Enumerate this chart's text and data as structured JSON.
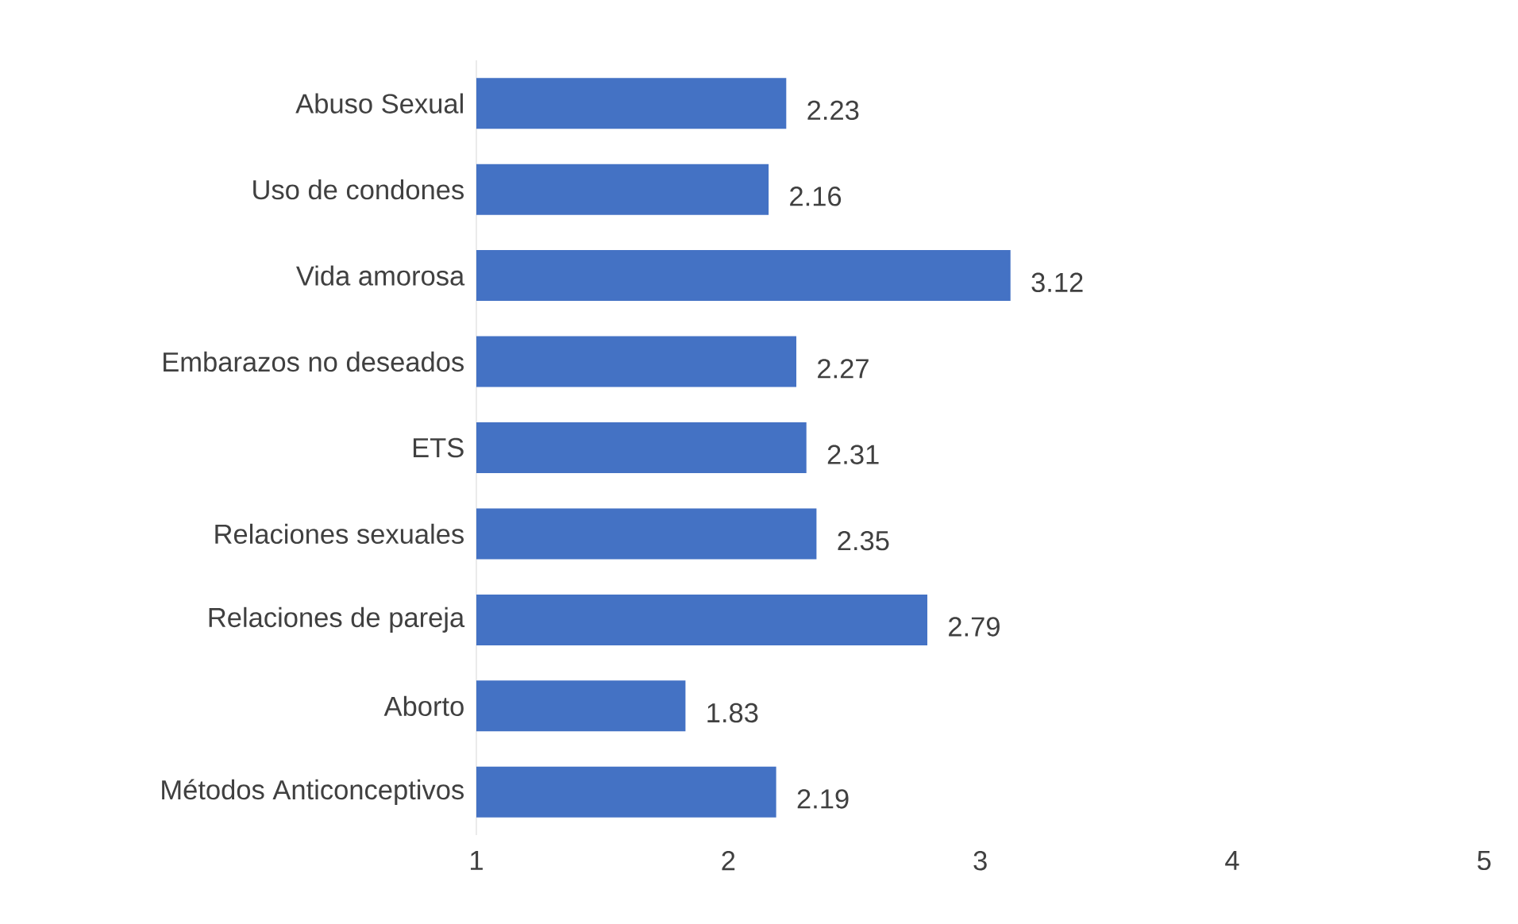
{
  "chart_data": {
    "type": "bar",
    "orientation": "horizontal",
    "categories": [
      "Abuso Sexual",
      "Uso de condones",
      "Vida amorosa",
      "Embarazos no deseados",
      "ETS",
      "Relaciones sexuales",
      "Relaciones de pareja",
      "Aborto",
      "Métodos Anticonceptivos"
    ],
    "values": [
      2.23,
      2.16,
      3.12,
      2.27,
      2.31,
      2.35,
      2.79,
      1.83,
      2.19
    ],
    "color": "#4472c4",
    "xlim": [
      1,
      5
    ],
    "xticks": [
      1,
      2,
      3,
      4,
      5
    ],
    "data_labels": true,
    "grid": false
  }
}
